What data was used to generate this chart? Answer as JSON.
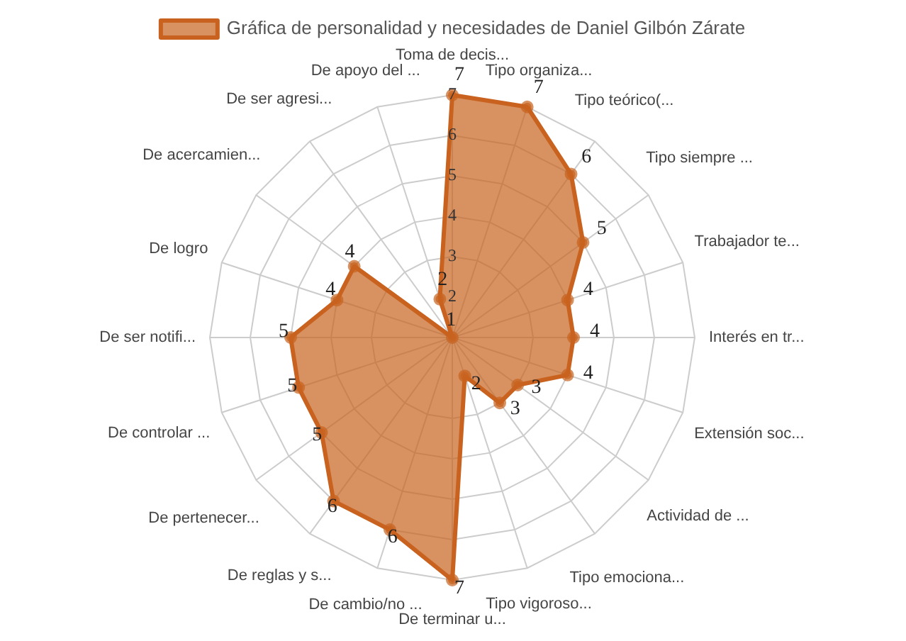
{
  "chart_data": {
    "type": "radar",
    "categories": [
      "Toma de decis...",
      "Tipo organiza...",
      "Tipo teórico(...",
      "Tipo siempre ...",
      "Trabajador te...",
      "Interés en tr...",
      "Extensión soc...",
      "Actividad de ...",
      "Tipo emociona...",
      "Tipo vigoroso...",
      "De terminar u...",
      "De cambio/no ...",
      "De reglas y s...",
      "De pertenecer...",
      "De controlar ...",
      "De ser notifi...",
      "De logro",
      "De acercamien...",
      "De ser agresi...",
      "De apoyo del ..."
    ],
    "series": [
      {
        "name": "Gráfica de personalidad y necesidades de Daniel Gilbón Zárate",
        "color": "#c8621e",
        "values": [
          7,
          7,
          6,
          5,
          4,
          4,
          4,
          3,
          3,
          2,
          7,
          6,
          6,
          5,
          5,
          5,
          4,
          4,
          1,
          2
        ]
      }
    ],
    "ylim": [
      1,
      7
    ],
    "yticks": [
      2,
      3,
      4,
      5,
      6,
      7
    ],
    "data_labels": true,
    "legend": "top",
    "grid": true,
    "marker": "circle"
  }
}
